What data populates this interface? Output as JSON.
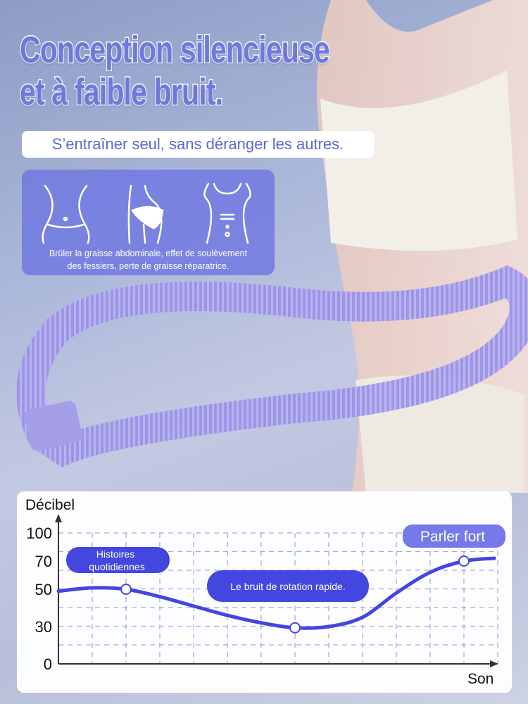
{
  "headline": {
    "line1": "Conception silencieuse",
    "line2": "et à faible bruit."
  },
  "subtitle": "S’entraîner seul, sans déranger les autres.",
  "benefits": {
    "icons": [
      "waist-icon",
      "hip-icon",
      "torso-icon"
    ],
    "text_line1": "Brûler la graisse abdominale, effet de soulèvement",
    "text_line2": "des fessiers, perte de graisse réparatrice."
  },
  "colors": {
    "accent": "#4347e0",
    "title": "#6f78dc",
    "panel": "#6e76e1"
  },
  "chart_data": {
    "type": "line",
    "ylabel": "Décibel",
    "xlabel": "Son",
    "y_ticks": [
      0,
      30,
      50,
      70,
      100
    ],
    "grid": true,
    "series": [
      {
        "x": [
          0,
          1,
          2,
          3,
          4,
          5,
          6,
          7,
          8,
          9,
          10,
          11,
          12,
          12.9
        ],
        "values": [
          49,
          51,
          50,
          46,
          41,
          36,
          32,
          29,
          30,
          35,
          48,
          62,
          70,
          73
        ]
      }
    ],
    "markers": [
      {
        "x": 2,
        "y": 50
      },
      {
        "x": 7,
        "y": 29
      },
      {
        "x": 12,
        "y": 70
      }
    ],
    "annotations": [
      {
        "line1": "Histoires",
        "line2": "quotidiennes"
      },
      {
        "text": "Le bruit de rotation rapide."
      },
      {
        "text": "Parler fort"
      }
    ]
  }
}
